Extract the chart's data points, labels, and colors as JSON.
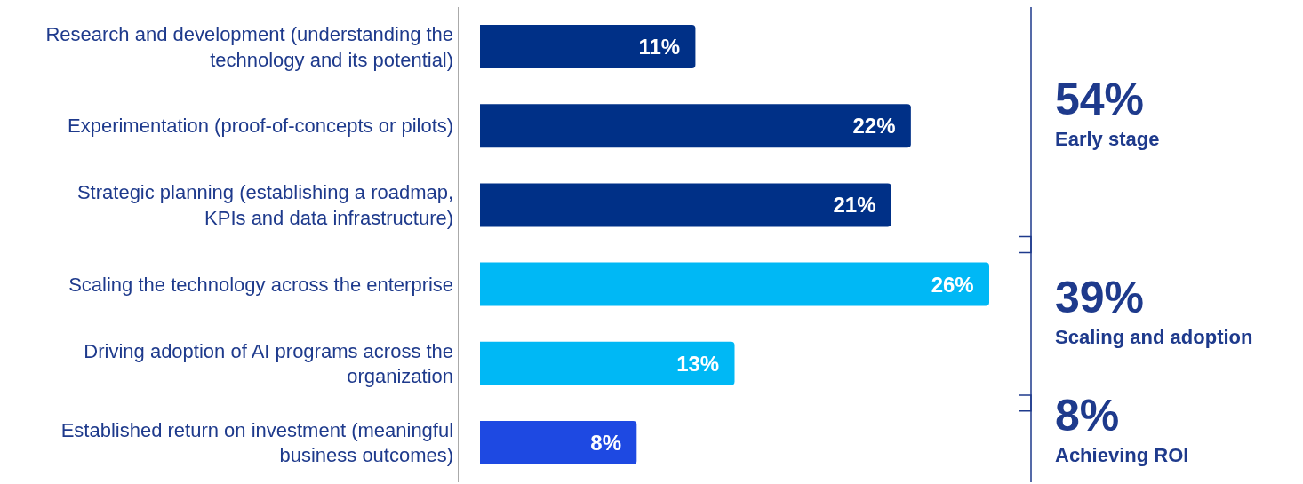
{
  "chart_data": {
    "type": "bar",
    "orientation": "horizontal",
    "categories": [
      "Research and development (understanding the technology and its potential)",
      "Experimentation (proof-of-concepts or pilots)",
      "Strategic planning (establishing a roadmap, KPIs and data infrastructure)",
      "Scaling the technology across the enterprise",
      "Driving adoption of AI programs across the organization",
      "Established return on investment (meaningful business outcomes)"
    ],
    "values": [
      11,
      22,
      21,
      26,
      13,
      8
    ],
    "value_labels": [
      "11%",
      "22%",
      "21%",
      "26%",
      "13%",
      "8%"
    ],
    "colors": [
      "#003087",
      "#003087",
      "#003087",
      "#00b8f5",
      "#00b8f5",
      "#1e49e2"
    ],
    "xlim": [
      0,
      26
    ],
    "tick_labels": "y",
    "grid": false,
    "legend": false,
    "annotations": [
      "54%",
      "Early stage",
      "39%",
      "Scaling and adoption",
      "8%",
      "Achieving ROI"
    ]
  }
}
